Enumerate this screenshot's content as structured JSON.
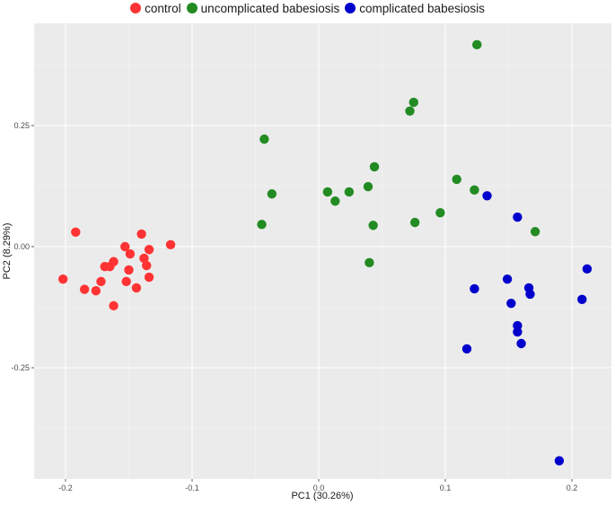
{
  "legend": {
    "items": [
      {
        "label": "control",
        "color": "#ff3333"
      },
      {
        "label": "uncomplicated babesiosis",
        "color": "#228b22"
      },
      {
        "label": "complicated babesiosis",
        "color": "#0000cc"
      }
    ]
  },
  "axes": {
    "xlabel": "PC1 (30.26%)",
    "ylabel": "PC2 (8.29%)",
    "xticks": [
      "-0.2",
      "-0.1",
      "0.0",
      "0.1",
      "0.2"
    ],
    "yticks": [
      "0.25",
      "0.00",
      "-0.25"
    ]
  },
  "chart_data": {
    "type": "scatter",
    "title": "",
    "xlabel": "PC1 (30.26%)",
    "ylabel": "PC2 (8.29%)",
    "xlim": [
      -0.225,
      0.235
    ],
    "ylim": [
      -0.49,
      0.44
    ],
    "grid": true,
    "legend_position": "top",
    "series": [
      {
        "name": "control",
        "color": "#ff3333",
        "points": [
          [
            -0.202,
            -0.067
          ],
          [
            -0.192,
            0.03
          ],
          [
            -0.185,
            -0.088
          ],
          [
            -0.176,
            -0.091
          ],
          [
            -0.172,
            -0.072
          ],
          [
            -0.169,
            -0.041
          ],
          [
            -0.165,
            -0.041
          ],
          [
            -0.162,
            -0.031
          ],
          [
            -0.162,
            -0.122
          ],
          [
            -0.153,
            0.0
          ],
          [
            -0.152,
            -0.072
          ],
          [
            -0.15,
            -0.048
          ],
          [
            -0.149,
            -0.015
          ],
          [
            -0.144,
            -0.085
          ],
          [
            -0.14,
            0.026
          ],
          [
            -0.138,
            -0.024
          ],
          [
            -0.136,
            -0.039
          ],
          [
            -0.134,
            -0.006
          ],
          [
            -0.134,
            -0.063
          ],
          [
            -0.117,
            0.004
          ]
        ]
      },
      {
        "name": "uncomplicated babesiosis",
        "color": "#228b22",
        "points": [
          [
            -0.043,
            0.222
          ],
          [
            -0.045,
            0.046
          ],
          [
            -0.037,
            0.109
          ],
          [
            0.007,
            0.113
          ],
          [
            0.013,
            0.094
          ],
          [
            0.024,
            0.113
          ],
          [
            0.039,
            0.124
          ],
          [
            0.044,
            0.165
          ],
          [
            0.043,
            0.044
          ],
          [
            0.04,
            -0.033
          ],
          [
            0.075,
            0.298
          ],
          [
            0.072,
            0.28
          ],
          [
            0.076,
            0.05
          ],
          [
            0.096,
            0.07
          ],
          [
            0.109,
            0.139
          ],
          [
            0.123,
            0.117
          ],
          [
            0.125,
            0.417
          ],
          [
            0.171,
            0.031
          ]
        ]
      },
      {
        "name": "complicated babesiosis",
        "color": "#0000cc",
        "points": [
          [
            0.133,
            0.105
          ],
          [
            0.157,
            0.061
          ],
          [
            0.123,
            -0.087
          ],
          [
            0.149,
            -0.067
          ],
          [
            0.152,
            -0.117
          ],
          [
            0.166,
            -0.085
          ],
          [
            0.167,
            -0.098
          ],
          [
            0.157,
            -0.163
          ],
          [
            0.157,
            -0.176
          ],
          [
            0.16,
            -0.2
          ],
          [
            0.117,
            -0.211
          ],
          [
            0.212,
            -0.046
          ],
          [
            0.208,
            -0.109
          ],
          [
            0.19,
            -0.442
          ]
        ]
      }
    ]
  }
}
